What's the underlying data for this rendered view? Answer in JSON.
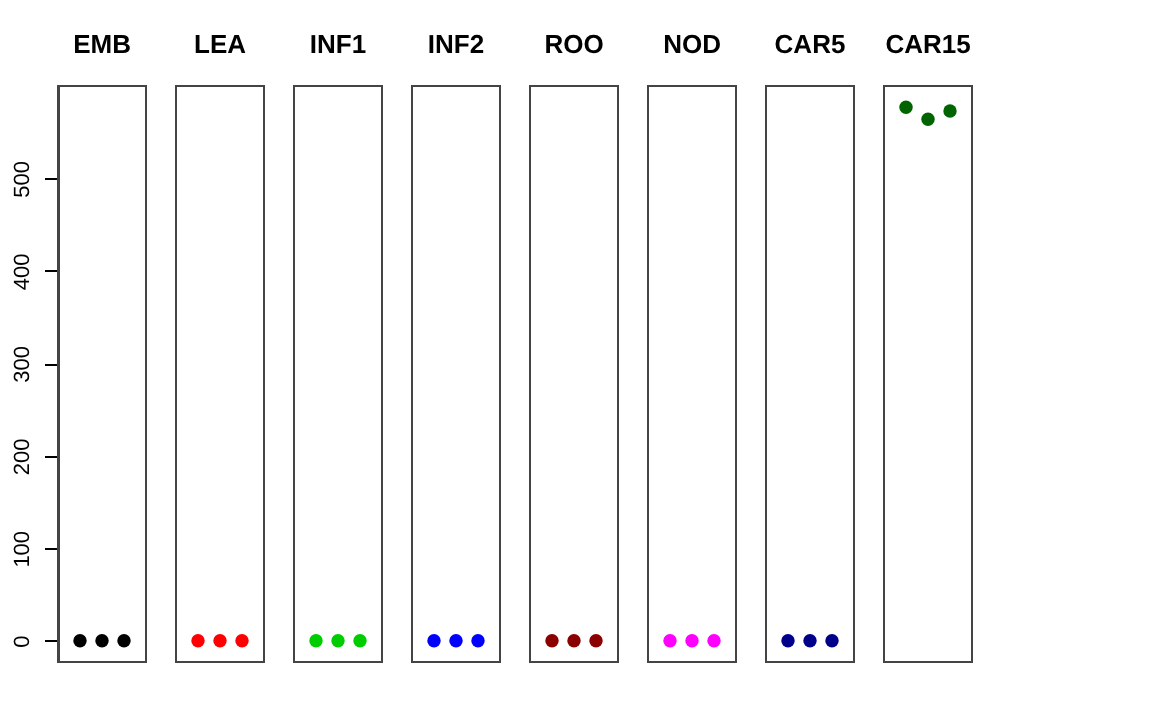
{
  "chart_data": {
    "type": "scatter",
    "categories": [
      "EMB",
      "LEA",
      "INF1",
      "INF2",
      "ROO",
      "NOD",
      "CAR5",
      "CAR15"
    ],
    "ylim": [
      -23,
      600
    ],
    "yticks": [
      0,
      100,
      200,
      300,
      400,
      500
    ],
    "marker": "circle",
    "series": [
      {
        "values": [
          0,
          0,
          0,
          0,
          0,
          0,
          0,
          577
        ],
        "colors": [
          "#000000",
          "#ff0000",
          "#00cd00",
          "#0000ff",
          "#8b0000",
          "#ff00ff",
          "#00008b",
          "#006400"
        ]
      },
      {
        "values": [
          0,
          0,
          0,
          0,
          0,
          0,
          0,
          564
        ],
        "colors": [
          "#000000",
          "#ff0000",
          "#00cd00",
          "#0000ff",
          "#8b0000",
          "#ff00ff",
          "#00008b",
          "#006400"
        ]
      },
      {
        "values": [
          0,
          0,
          0,
          0,
          0,
          0,
          0,
          573
        ],
        "colors": [
          "#000000",
          "#ff0000",
          "#00cd00",
          "#0000ff",
          "#8b0000",
          "#ff00ff",
          "#00008b",
          "#006400"
        ]
      }
    ]
  }
}
